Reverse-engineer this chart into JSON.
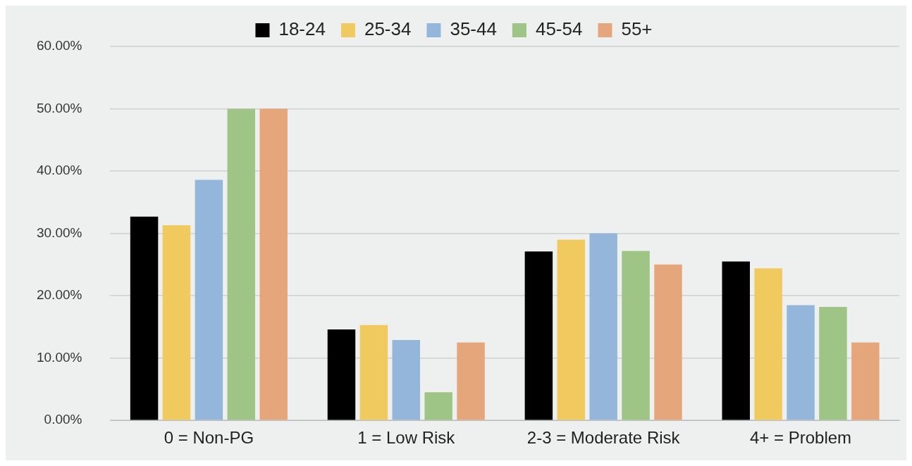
{
  "chart_data": {
    "type": "bar",
    "categories": [
      "0 = Non-PG",
      "1 = Low Risk",
      "2-3 = Moderate Risk",
      "4+ = Problem"
    ],
    "series": [
      {
        "name": "18-24",
        "color": "#000000",
        "values": [
          32.7,
          14.6,
          27.1,
          25.5
        ]
      },
      {
        "name": "25-34",
        "color": "#f0ca5e",
        "values": [
          31.3,
          15.3,
          29.0,
          24.4
        ]
      },
      {
        "name": "35-44",
        "color": "#93b6da",
        "values": [
          38.6,
          12.9,
          30.0,
          18.5
        ]
      },
      {
        "name": "45-54",
        "color": "#9fc586",
        "values": [
          50.0,
          4.5,
          27.2,
          18.2
        ]
      },
      {
        "name": "55+",
        "color": "#e6a67b",
        "values": [
          50.0,
          12.5,
          25.0,
          12.5
        ]
      }
    ],
    "ylim": [
      0,
      60
    ],
    "yticks": [
      {
        "value": 0,
        "label": "0.00%"
      },
      {
        "value": 10,
        "label": "10.00%"
      },
      {
        "value": 20,
        "label": "20.00%"
      },
      {
        "value": 30,
        "label": "30.00%"
      },
      {
        "value": 40,
        "label": "40.00%"
      },
      {
        "value": 50,
        "label": "50.00%"
      },
      {
        "value": 60,
        "label": "60.00%"
      }
    ],
    "grid": "y",
    "legend": "top"
  }
}
